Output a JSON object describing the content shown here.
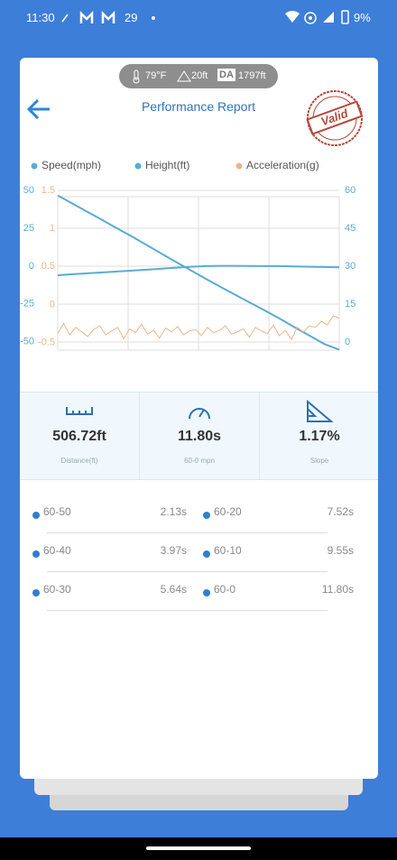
{
  "status_bar": {
    "time": "11:30",
    "notification": "29",
    "battery": "9%"
  },
  "conditions": {
    "temperature": "79°F",
    "elevation": "20ft",
    "da_badge": "DA",
    "density_altitude": "1797ft"
  },
  "header": {
    "title": "Performance Report",
    "stamp": "Valid"
  },
  "chart_data": {
    "type": "line",
    "series": [
      {
        "name": "Speed(mph)",
        "color": "#5aabd6",
        "axis": "y",
        "values": [
          58,
          54.8,
          51.5,
          48.3,
          45,
          41.8,
          38.4,
          35,
          31.6,
          28.3,
          25,
          21.8,
          18.6,
          15.5,
          12.4,
          9.2,
          5.8,
          2.5,
          -0.8,
          -3
        ]
      },
      {
        "name": "Height(ft)",
        "color": "#5aabd6",
        "axis": "y2",
        "values": [
          -6,
          -5.4,
          -4.8,
          -4.2,
          -3.6,
          -3,
          -2.4,
          -1.7,
          -1,
          -0.4,
          0,
          0.2,
          0.2,
          0.1,
          0,
          0,
          -0.2,
          -0.4,
          -0.6,
          -0.8
        ]
      },
      {
        "name": "Acceleration(g)",
        "color": "#f0b48a",
        "axis": "y3",
        "values": [
          -0.38,
          -0.25,
          -0.4,
          -0.3,
          -0.36,
          -0.42,
          -0.33,
          -0.28,
          -0.4,
          -0.35,
          -0.3,
          -0.45,
          -0.32,
          -0.37,
          -0.26,
          -0.39,
          -0.34,
          -0.44,
          -0.31,
          -0.36,
          -0.29,
          -0.4,
          -0.35,
          -0.33,
          -0.41,
          -0.3,
          -0.37,
          -0.34,
          -0.28,
          -0.39,
          -0.36,
          -0.32,
          -0.43,
          -0.3,
          -0.35,
          -0.38,
          -0.27,
          -0.41,
          -0.34,
          -0.46,
          -0.3,
          -0.36,
          -0.28,
          -0.3,
          -0.22,
          -0.27,
          -0.15,
          -0.18
        ]
      }
    ],
    "ylim": [
      -3.2,
      60
    ],
    "yticks": [
      60,
      45,
      30,
      15,
      0
    ],
    "y2lim": [
      -55.5,
      50
    ],
    "y2ticks": [
      50,
      25,
      0,
      -25,
      -50
    ],
    "y3lim": [
      -0.6,
      1.5
    ],
    "y3ticks": [
      1.5,
      1,
      0.5,
      0,
      -0.5
    ],
    "grid": true
  },
  "stats": [
    {
      "value": "506.72ft",
      "label": "Distance(ft)"
    },
    {
      "value": "11.80s",
      "label": "60-0 mpn"
    },
    {
      "value": "1.17%",
      "label": "Slope"
    }
  ],
  "splits": [
    [
      "60-50",
      "2.13s",
      "60-20",
      "7.52s"
    ],
    [
      "60-40",
      "3.97s",
      "60-10",
      "9.55s"
    ],
    [
      "60-30",
      "5.64s",
      "60-0",
      "11.80s"
    ]
  ]
}
